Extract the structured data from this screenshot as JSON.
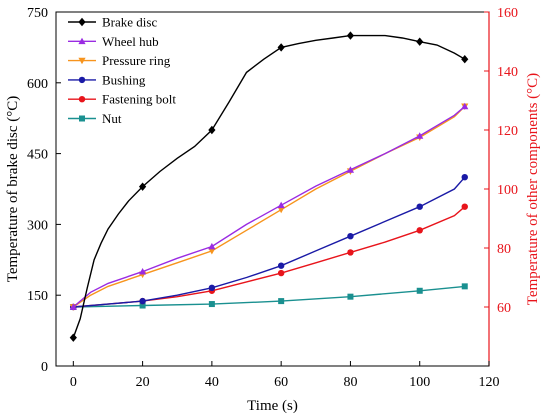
{
  "chart_data": {
    "type": "line",
    "xlabel": "Time (s)",
    "ylabel_left": "Temperature of brake disc (°C)",
    "ylabel_right": "Temperature of other components (°C)",
    "xlim": [
      -5,
      120
    ],
    "ylim_left": [
      0,
      750
    ],
    "ylim_right": [
      40,
      160
    ],
    "xticks": [
      0,
      20,
      40,
      60,
      80,
      100,
      120
    ],
    "yticks_left": [
      0,
      150,
      300,
      450,
      600,
      750
    ],
    "yticks_right": [
      60,
      80,
      100,
      120,
      140,
      160
    ],
    "right_axis_color": "#e8141b",
    "legend_position": "top-left",
    "grid": false,
    "series": [
      {
        "name": "Brake disc",
        "axis": "left",
        "color": "#000000",
        "marker": "diamond",
        "x": [
          0,
          2,
          4,
          6,
          8,
          10,
          13,
          16,
          20,
          25,
          30,
          35,
          40,
          45,
          50,
          55,
          60,
          65,
          70,
          75,
          80,
          85,
          90,
          95,
          100,
          105,
          110,
          113
        ],
        "y": [
          60,
          100,
          165,
          225,
          260,
          290,
          322,
          350,
          380,
          412,
          440,
          465,
          500,
          560,
          622,
          650,
          675,
          683,
          690,
          695,
          700,
          700,
          700,
          695,
          687,
          680,
          663,
          650
        ],
        "markers_at": [
          0,
          20,
          40,
          60,
          80,
          100,
          113
        ]
      },
      {
        "name": "Wheel hub",
        "axis": "right",
        "color": "#9a2be2",
        "marker": "triangle-up",
        "x": [
          0,
          5,
          10,
          20,
          30,
          40,
          50,
          60,
          70,
          80,
          90,
          100,
          110,
          113
        ],
        "y": [
          60,
          65,
          68,
          72,
          76.5,
          80.5,
          88,
          94.5,
          101,
          106.5,
          112,
          118,
          125,
          128
        ],
        "markers_at": [
          0,
          20,
          40,
          60,
          80,
          100,
          113
        ]
      },
      {
        "name": "Pressure ring",
        "axis": "right",
        "color": "#f7941d",
        "marker": "triangle-down",
        "x": [
          0,
          5,
          10,
          20,
          30,
          40,
          50,
          60,
          70,
          80,
          90,
          100,
          110,
          113
        ],
        "y": [
          60,
          64,
          67,
          71,
          75,
          79,
          86,
          93,
          100,
          106,
          112,
          117.5,
          124.5,
          128
        ],
        "markers_at": [
          0,
          20,
          40,
          60,
          80,
          100,
          113
        ]
      },
      {
        "name": "Bushing",
        "axis": "right",
        "color": "#1a1aa6",
        "marker": "circle",
        "x": [
          0,
          10,
          20,
          30,
          40,
          50,
          60,
          70,
          80,
          90,
          100,
          110,
          113
        ],
        "y": [
          60,
          61,
          62,
          64,
          66.5,
          70,
          74,
          79,
          84,
          89,
          94,
          100,
          104
        ],
        "markers_at": [
          0,
          20,
          40,
          60,
          80,
          100,
          113
        ]
      },
      {
        "name": "Fastening bolt",
        "axis": "right",
        "color": "#e8141b",
        "marker": "circle",
        "x": [
          0,
          10,
          20,
          30,
          40,
          50,
          60,
          70,
          80,
          90,
          100,
          110,
          113
        ],
        "y": [
          60,
          61,
          62,
          63.5,
          65.5,
          68.5,
          71.5,
          75,
          78.5,
          82,
          86,
          91,
          94
        ],
        "markers_at": [
          0,
          20,
          40,
          60,
          80,
          100,
          113
        ]
      },
      {
        "name": "Nut",
        "axis": "right",
        "color": "#1a9090",
        "marker": "square",
        "x": [
          0,
          20,
          40,
          60,
          80,
          100,
          113
        ],
        "y": [
          60,
          60.5,
          61,
          62,
          63.5,
          65.5,
          67
        ],
        "markers_at": [
          0,
          20,
          40,
          60,
          80,
          100,
          113
        ]
      }
    ]
  }
}
